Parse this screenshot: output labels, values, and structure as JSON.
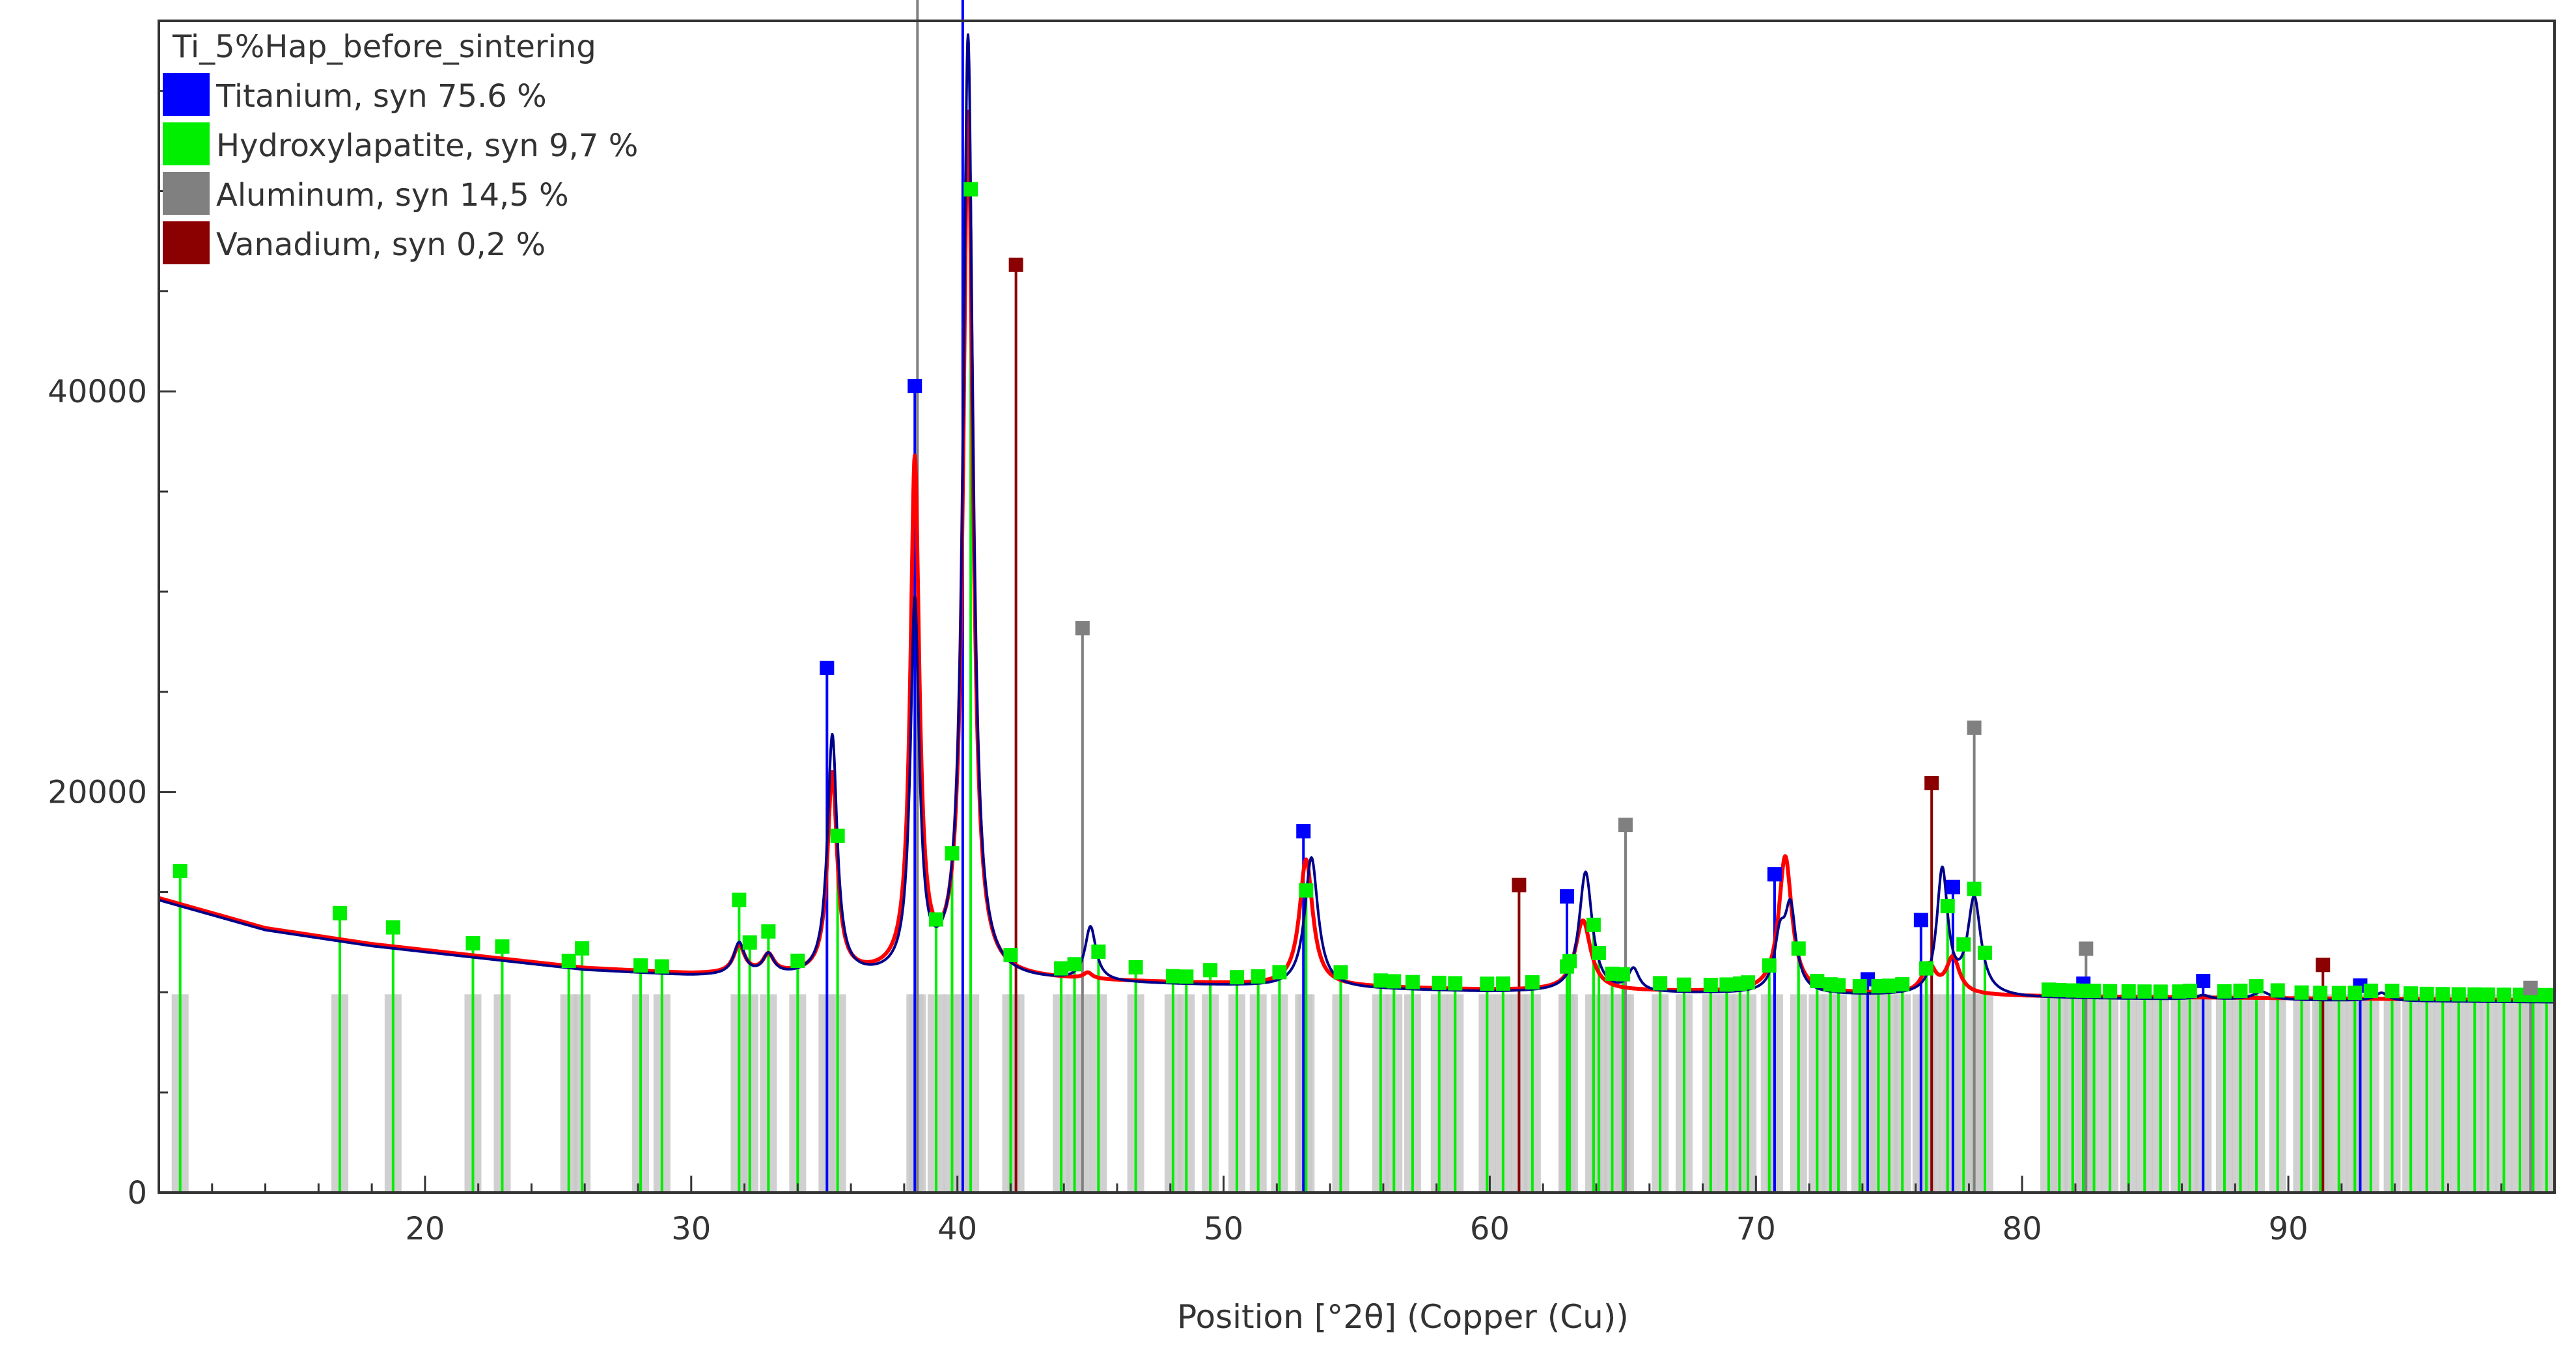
{
  "chart_data": {
    "type": "line",
    "title": "",
    "xlabel": "Position [°2θ] (Copper (Cu))",
    "ylabel": "",
    "xlim": [
      10,
      100
    ],
    "ylim": [
      0,
      58500
    ],
    "x_ticks": [
      20,
      30,
      40,
      50,
      60,
      70,
      80,
      90
    ],
    "y_ticks": [
      0,
      20000,
      40000
    ],
    "grid": false,
    "legend": {
      "placement": "top-left",
      "sample_name": "Ti_5%Hap_before_sintering",
      "entries": [
        {
          "label": "Titanium, syn 75.6 %",
          "color": "#0000ff"
        },
        {
          "label": "Hydroxylapatite, syn 9,7 %",
          "color": "#00ee00"
        },
        {
          "label": "Aluminum, syn 14,5 %",
          "color": "#808080"
        },
        {
          "label": "Vanadium, syn 0,2 %",
          "color": "#8b0000"
        }
      ]
    },
    "series": [
      {
        "name": "",
        "role": "observed",
        "color": "#ff0000",
        "background": [
          [
            10,
            14700
          ],
          [
            14,
            13200
          ],
          [
            18,
            12400
          ],
          [
            22,
            11800
          ],
          [
            26,
            11200
          ],
          [
            30,
            10900
          ],
          [
            40,
            10700
          ],
          [
            50,
            10400
          ],
          [
            60,
            10100
          ],
          [
            70,
            10000
          ],
          [
            80,
            9800
          ],
          [
            90,
            9700
          ],
          [
            100,
            9600
          ]
        ],
        "peaks": [
          [
            31.8,
            1400,
            0.25
          ],
          [
            32.9,
            900,
            0.25
          ],
          [
            35.3,
            10000,
            0.22
          ],
          [
            38.4,
            25500,
            0.2
          ],
          [
            40.4,
            43000,
            0.22
          ],
          [
            44.9,
            300,
            0.2
          ],
          [
            53.1,
            6300,
            0.3
          ],
          [
            63.5,
            3500,
            0.35
          ],
          [
            71.1,
            6800,
            0.3
          ],
          [
            76.5,
            1400,
            0.3
          ],
          [
            77.4,
            1800,
            0.3
          ]
        ]
      },
      {
        "name": "",
        "role": "calculated",
        "color": "#00008b",
        "background": [
          [
            10,
            14600
          ],
          [
            14,
            13100
          ],
          [
            18,
            12300
          ],
          [
            22,
            11700
          ],
          [
            26,
            11100
          ],
          [
            30,
            10800
          ],
          [
            40,
            10600
          ],
          [
            50,
            10300
          ],
          [
            60,
            10000
          ],
          [
            70,
            9900
          ],
          [
            80,
            9700
          ],
          [
            90,
            9600
          ],
          [
            100,
            9500
          ]
        ],
        "peaks": [
          [
            31.8,
            1600,
            0.25
          ],
          [
            32.9,
            1000,
            0.25
          ],
          [
            35.3,
            12000,
            0.22
          ],
          [
            38.4,
            18500,
            0.2
          ],
          [
            40.4,
            47000,
            0.22
          ],
          [
            45.0,
            2700,
            0.25
          ],
          [
            53.3,
            6500,
            0.3
          ],
          [
            63.6,
            6000,
            0.3
          ],
          [
            65.4,
            1100,
            0.25
          ],
          [
            70.9,
            2500,
            0.25
          ],
          [
            71.3,
            4000,
            0.25
          ],
          [
            77.0,
            6200,
            0.25
          ],
          [
            78.2,
            4800,
            0.3
          ],
          [
            86.8,
            200,
            0.3
          ],
          [
            89.0,
            400,
            0.4
          ],
          [
            93.5,
            400,
            0.3
          ]
        ]
      }
    ],
    "phase_markers": [
      {
        "phase": "Titanium, syn",
        "color": "#0000ff",
        "positions": [
          35.1,
          38.4,
          40.2,
          53.0,
          62.9,
          70.7,
          74.2,
          76.2,
          77.4,
          82.3,
          86.8,
          92.7
        ],
        "intensities": [
          25,
          30,
          100,
          13,
          11,
          11,
          2,
          9,
          9,
          2,
          2,
          2
        ]
      },
      {
        "phase": "Hydroxylapatite, syn",
        "color": "#00ee00",
        "positions": [
          10.8,
          16.8,
          18.8,
          21.8,
          22.9,
          25.4,
          25.9,
          28.1,
          28.9,
          31.8,
          32.2,
          32.9,
          34.0,
          35.5,
          39.2,
          39.8,
          40.5,
          42.0,
          43.9,
          44.4,
          45.3,
          46.7,
          48.1,
          48.6,
          49.5,
          50.5,
          51.3,
          52.1,
          53.1,
          54.4,
          55.9,
          56.4,
          57.1,
          58.1,
          58.7,
          59.9,
          60.5,
          61.6,
          62.9,
          63.0,
          63.9,
          64.1,
          64.6,
          65.0,
          66.4,
          67.3,
          68.3,
          68.9,
          69.4,
          69.7,
          70.5,
          71.6,
          72.3,
          72.8,
          73.1,
          73.9,
          74.6,
          75.0,
          75.5,
          76.4,
          77.2,
          77.8,
          78.2,
          78.6,
          81.0,
          81.4,
          81.9,
          82.3,
          82.7,
          83.3,
          84.0,
          84.6,
          85.2,
          85.9,
          86.3,
          87.6,
          88.2,
          88.8,
          89.6,
          90.5,
          91.2,
          91.9,
          92.5,
          93.1,
          93.9,
          94.6,
          95.2,
          95.8,
          96.4,
          97.0,
          97.5,
          98.1,
          98.7,
          99.2,
          99.7
        ],
        "intensities": [
          5,
          4,
          3,
          2,
          2,
          1,
          3,
          1,
          1,
          6,
          3,
          3,
          1,
          1,
          1,
          1,
          1,
          1,
          1,
          1,
          1,
          2,
          1,
          1,
          2,
          1,
          1,
          1,
          1,
          1,
          1,
          1,
          1,
          1,
          1,
          1,
          1,
          1,
          1,
          1,
          1,
          1,
          1,
          1,
          1,
          1,
          1,
          1,
          1,
          1,
          1,
          1,
          1,
          1,
          1,
          1,
          1,
          1,
          1,
          1,
          1,
          1,
          1,
          1,
          1,
          1,
          1,
          1,
          1,
          1,
          1,
          1,
          1,
          1,
          1,
          1,
          1,
          1,
          1,
          1,
          1,
          1,
          1,
          1,
          1,
          1,
          1,
          1,
          1,
          1,
          1,
          1,
          1,
          1,
          1
        ]
      },
      {
        "phase": "Aluminum, syn",
        "color": "#808080",
        "positions": [
          38.5,
          44.7,
          65.1,
          78.2,
          82.4,
          99.1
        ],
        "intensities": [
          100,
          47,
          22,
          24,
          7,
          2
        ]
      },
      {
        "phase": "Vanadium, syn",
        "color": "#8b0000",
        "positions": [
          42.2,
          61.1,
          76.6,
          91.3
        ],
        "intensities": [
          100,
          15,
          25,
          5
        ]
      }
    ]
  }
}
